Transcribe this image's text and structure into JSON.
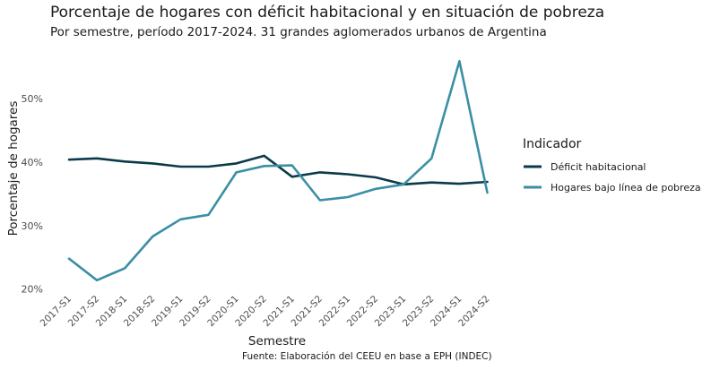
{
  "chart_data": {
    "type": "line",
    "title": "Porcentaje de hogares con déficit habitacional y en situación de pobreza",
    "subtitle": "Por semestre, período 2017-2024. 31 grandes aglomerados urbanos de Argentina",
    "caption": "Fuente: Elaboración del CEEU en base a EPH (INDEC)",
    "xlabel": "Semestre",
    "ylabel": "Porcentaje de hogares",
    "categories": [
      "2017-S1",
      "2017-S2",
      "2018-S1",
      "2018-S2",
      "2019-S1",
      "2019-S2",
      "2020-S1",
      "2020-S2",
      "2021-S1",
      "2021-S2",
      "2022-S1",
      "2022-S2",
      "2023-S1",
      "2023-S2",
      "2024-S1",
      "2024-S2"
    ],
    "y_ticks": [
      20,
      30,
      40,
      50
    ],
    "y_tick_labels": [
      "20%",
      "30%",
      "40%",
      "50%"
    ],
    "ylim": [
      19.4,
      57.5
    ],
    "grid": false,
    "legend": {
      "title": "Indicador",
      "position": "right"
    },
    "series": [
      {
        "name": "Déficit habitacional",
        "color": "#0b3a4a",
        "values": [
          40.4,
          40.6,
          40.1,
          39.8,
          39.3,
          39.3,
          39.8,
          41.0,
          37.7,
          38.4,
          38.1,
          37.6,
          36.5,
          36.8,
          36.6,
          36.9
        ]
      },
      {
        "name": "Hogares bajo línea de pobreza",
        "color": "#3a8fa6",
        "values": [
          24.8,
          21.4,
          23.3,
          28.3,
          31.0,
          31.7,
          38.4,
          39.4,
          39.5,
          34.0,
          34.5,
          35.8,
          36.5,
          40.6,
          55.9,
          35.2
        ]
      }
    ]
  }
}
